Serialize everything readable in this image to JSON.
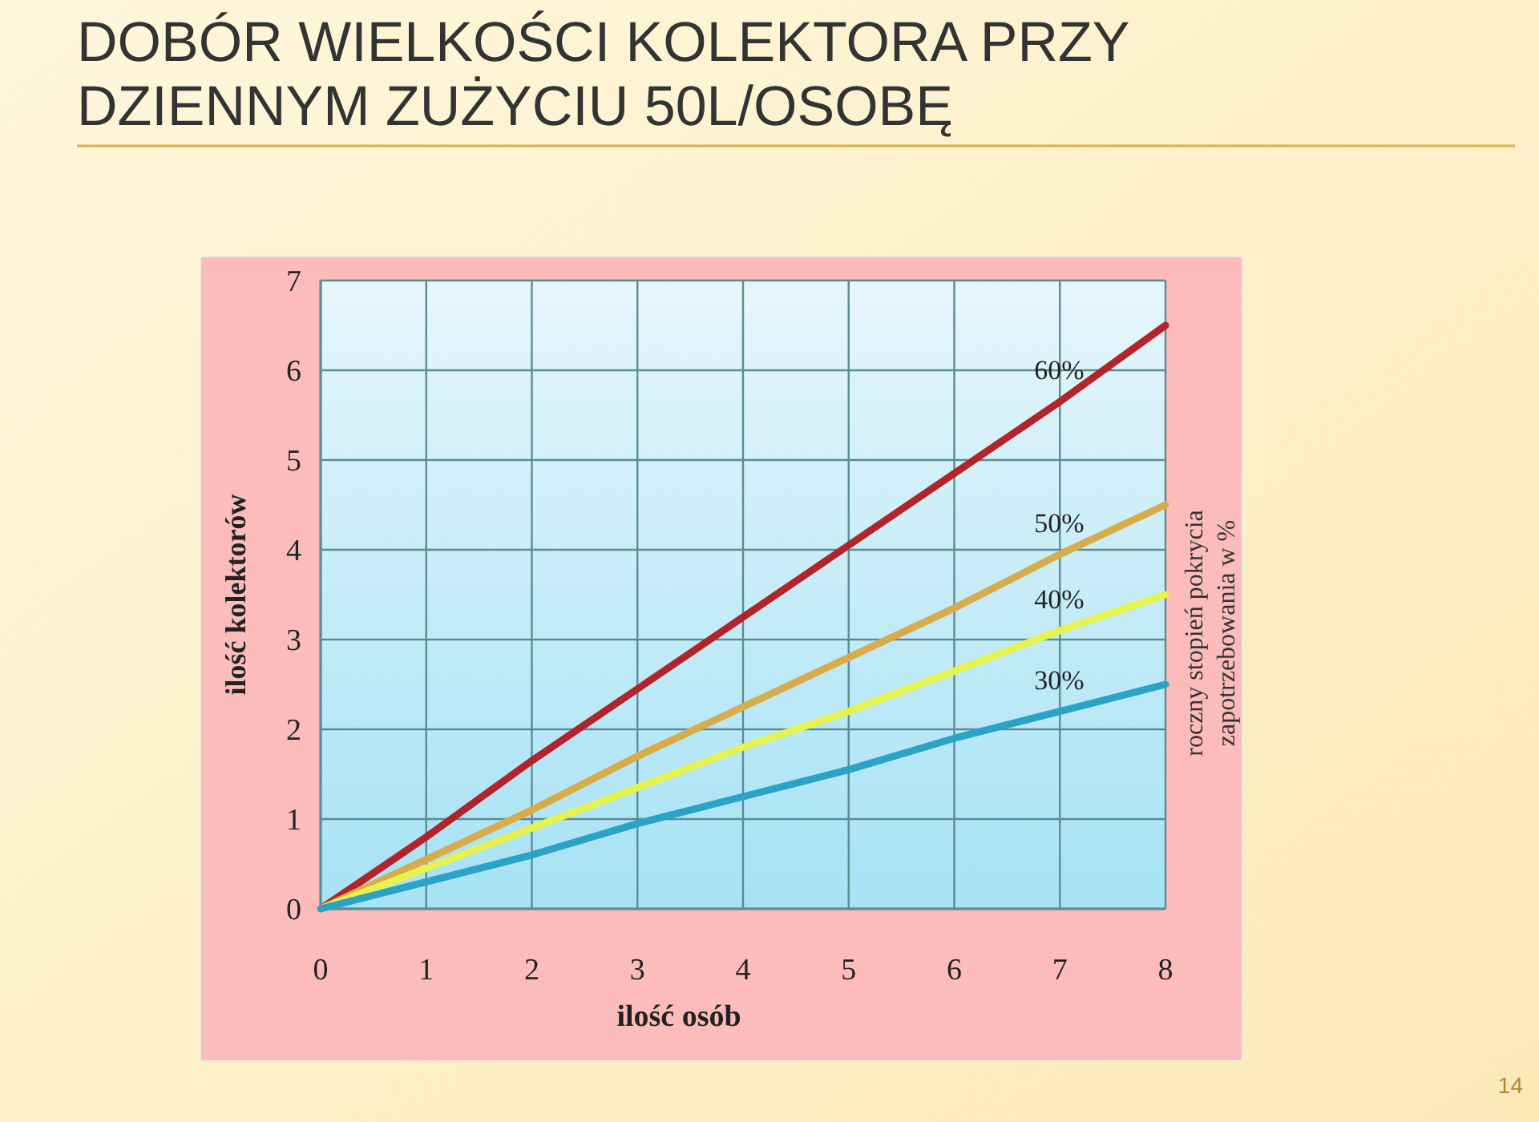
{
  "chart_data": {
    "type": "line",
    "title": "DOBÓR WIELKOŚCI KOLEKTORA PRZY\nDZIENNYM ZUŻYCIU 50L/OSOBĘ",
    "xlabel": "ilość osób",
    "ylabel": "ilość kolektorów",
    "x": [
      0,
      1,
      2,
      3,
      4,
      5,
      6,
      7,
      8
    ],
    "series": [
      {
        "name": "60%",
        "color": "#b3242a",
        "values": [
          0,
          0.8,
          1.65,
          2.45,
          3.25,
          4.05,
          4.85,
          5.65,
          6.5
        ]
      },
      {
        "name": "50%",
        "color": "#d8ac48",
        "values": [
          0,
          0.55,
          1.1,
          1.7,
          2.25,
          2.8,
          3.35,
          3.95,
          4.5
        ]
      },
      {
        "name": "40%",
        "color": "#e6f24e",
        "values": [
          0,
          0.45,
          0.9,
          1.35,
          1.8,
          2.2,
          2.65,
          3.1,
          3.5
        ]
      },
      {
        "name": "30%",
        "color": "#2aa3c6",
        "values": [
          0,
          0.3,
          0.6,
          0.95,
          1.25,
          1.55,
          1.9,
          2.2,
          2.5
        ]
      }
    ],
    "xlim": [
      0,
      8
    ],
    "ylim": [
      0,
      7
    ],
    "xticks": [
      0,
      1,
      2,
      3,
      4,
      5,
      6,
      7,
      8
    ],
    "yticks": [
      0,
      1,
      2,
      3,
      4,
      5,
      6,
      7
    ],
    "grid": true,
    "marker": "none",
    "line_style": "solid",
    "annotations": [
      "roczny stopień pokrycia\nzapotrzebowania w %",
      "14"
    ]
  }
}
